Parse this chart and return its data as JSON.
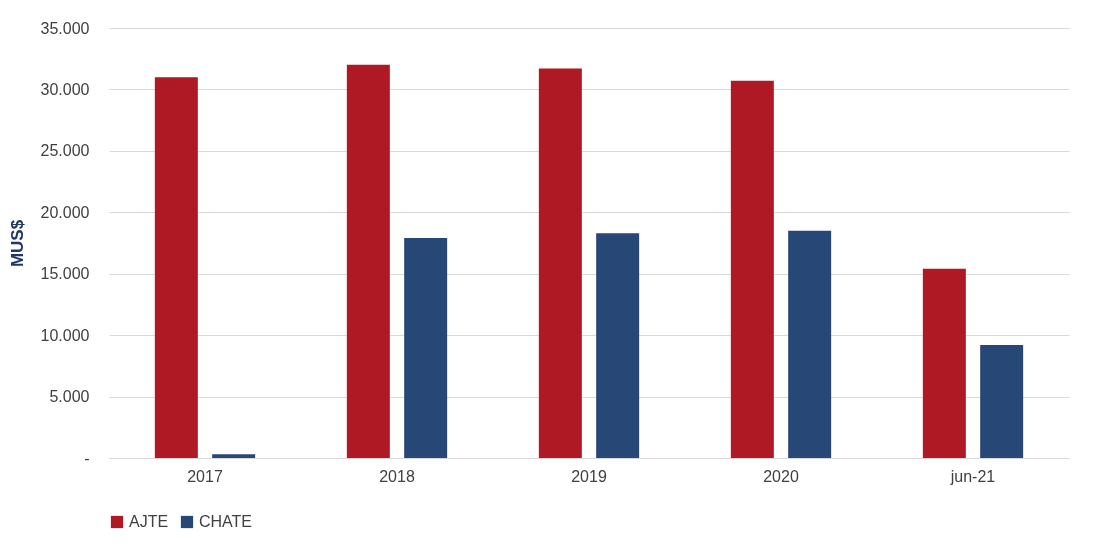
{
  "chart_data": {
    "type": "bar",
    "ylabel": "MUS$",
    "categories": [
      "2017",
      "2018",
      "2019",
      "2020",
      "jun-21"
    ],
    "series": [
      {
        "name": "AJTE",
        "color": "#ae1923",
        "values": [
          31000,
          32000,
          31700,
          30700,
          15400
        ]
      },
      {
        "name": "CHATE",
        "color": "#274777",
        "values": [
          300,
          17900,
          18300,
          18500,
          9200
        ]
      }
    ],
    "ylim": [
      0,
      35000
    ],
    "yticks": [
      {
        "value": 0,
        "label": "-"
      },
      {
        "value": 5000,
        "label": "5.000"
      },
      {
        "value": 10000,
        "label": "10.000"
      },
      {
        "value": 15000,
        "label": "15.000"
      },
      {
        "value": 20000,
        "label": "20.000"
      },
      {
        "value": 25000,
        "label": "25.000"
      },
      {
        "value": 30000,
        "label": "30.000"
      },
      {
        "value": 35000,
        "label": "35.000"
      }
    ],
    "grid": "y",
    "legend": "bottom"
  }
}
